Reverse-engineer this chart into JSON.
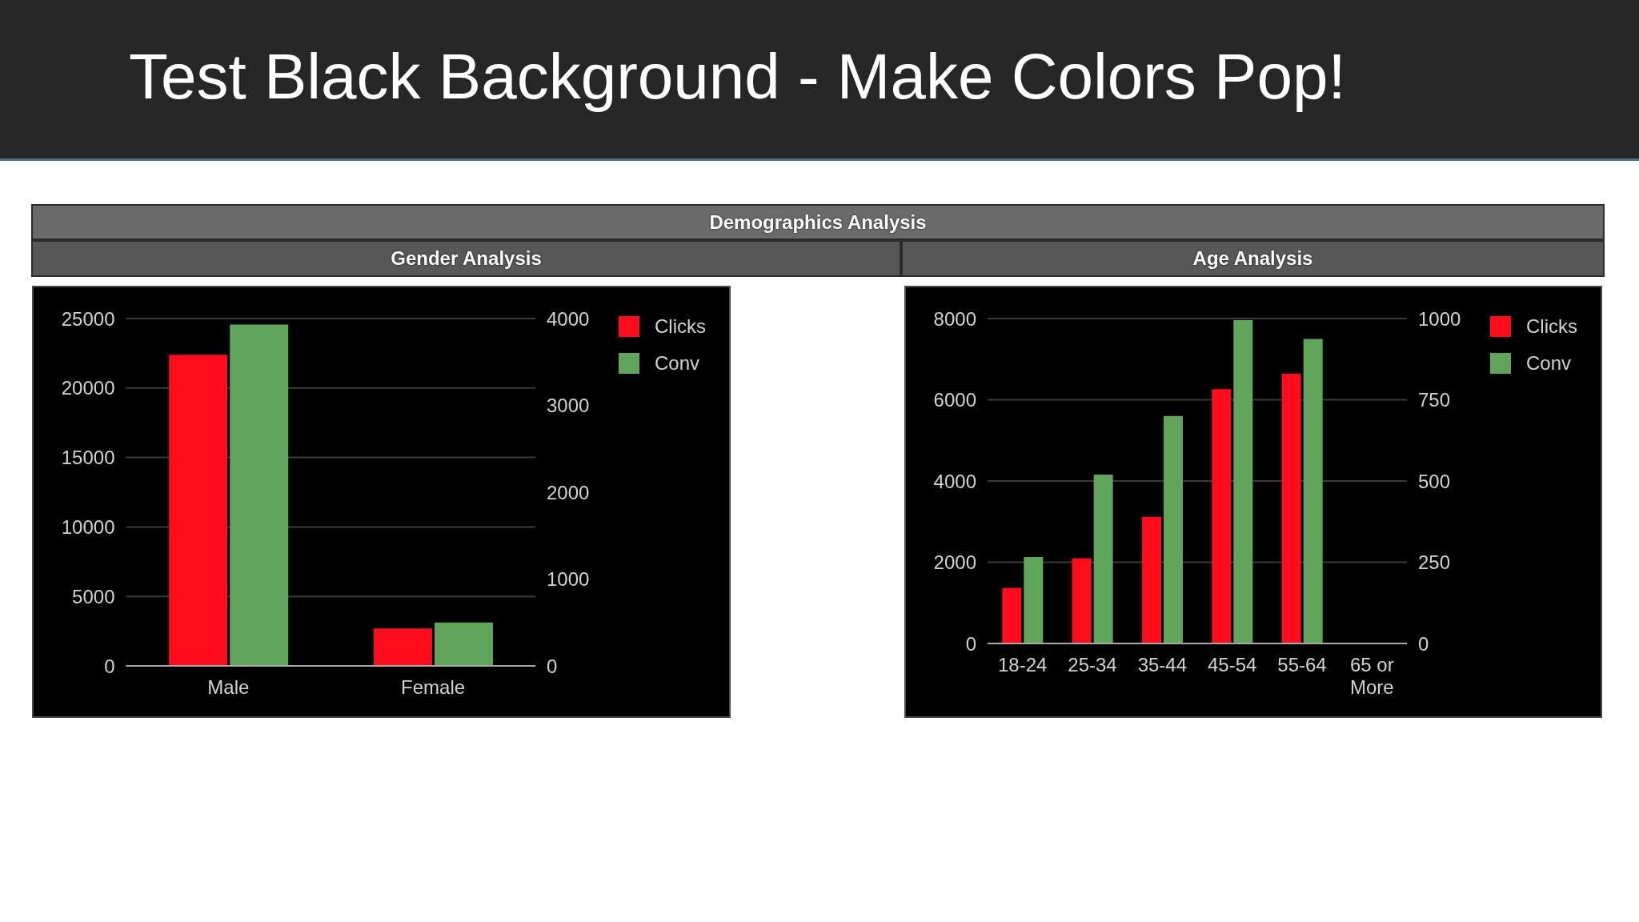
{
  "chart_data": [
    {
      "type": "other",
      "title": "Test Black Background - Make Colors Pop!",
      "subtitle": "Demographics Analysis"
    },
    {
      "type": "bar",
      "title": "Gender Analysis",
      "categories": [
        "Male",
        "Female"
      ],
      "series": [
        {
          "name": "Clicks",
          "color": "#ff0d1d",
          "values": [
            22400,
            2700
          ]
        },
        {
          "name": "Conv",
          "color": "#5fa55a",
          "axis": "y2",
          "values": [
            3930,
            500
          ]
        }
      ],
      "ylim": [
        0,
        25000
      ],
      "yticks": [
        0,
        5000,
        10000,
        15000,
        20000,
        25000
      ],
      "y2lim": [
        0,
        4000
      ],
      "y2ticks": [
        0,
        1000,
        2000,
        3000,
        4000
      ],
      "grid": "y",
      "legend": "top right"
    },
    {
      "type": "bar",
      "title": "Age Analysis",
      "categories": [
        "18-24",
        "25-34",
        "35-44",
        "45-54",
        "55-64",
        "65 or More"
      ],
      "series": [
        {
          "name": "Clicks",
          "color": "#ff0d1d",
          "values": [
            1370,
            2100,
            3120,
            6260,
            6640,
            0
          ]
        },
        {
          "name": "Conv",
          "color": "#5fa55a",
          "axis": "y2",
          "values": [
            266,
            520,
            700,
            995,
            937,
            0
          ]
        }
      ],
      "ylim": [
        0,
        8000
      ],
      "yticks": [
        0,
        2000,
        4000,
        6000,
        8000
      ],
      "y2lim": [
        0,
        1000
      ],
      "y2ticks": [
        0,
        250,
        500,
        750,
        1000
      ],
      "grid": "y",
      "legend": "top right"
    }
  ]
}
